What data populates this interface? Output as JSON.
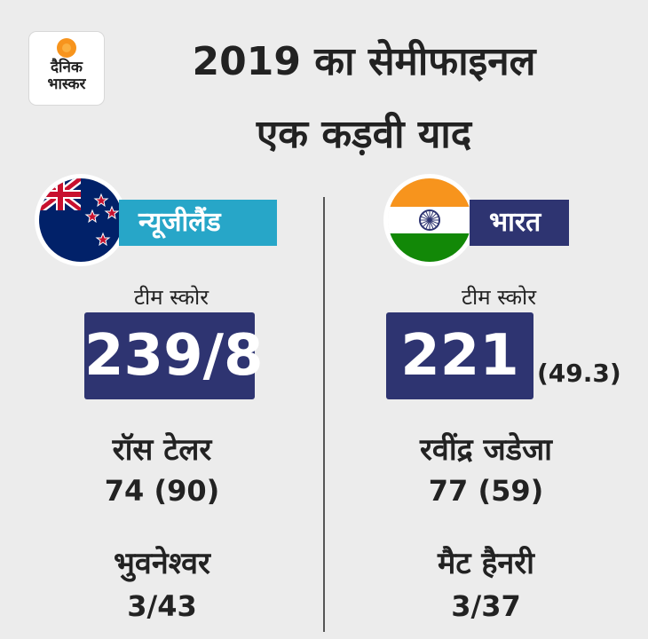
{
  "logo": {
    "line1": "दैनिक",
    "line2": "भास्कर"
  },
  "title": {
    "line1": "2019 का सेमीफाइनल",
    "line2": "एक कड़वी याद"
  },
  "teams": [
    {
      "name": "न्यूजीलैंड",
      "score_caption": "टीम स्कोर",
      "score": "239/8",
      "overs": "",
      "top_batsman": "रॉस टेलर",
      "top_batsman_score": "74 (90)",
      "top_bowler": "भुवनेश्वर",
      "top_bowler_figures": "3/43"
    },
    {
      "name": "भारत",
      "score_caption": "टीम स्कोर",
      "score": "221",
      "overs": "(49.3)",
      "top_batsman": "रवींद्र जडेजा",
      "top_batsman_score": "77 (59)",
      "top_bowler": "मैट हैनरी",
      "top_bowler_figures": "3/37"
    }
  ],
  "colors": {
    "background": "#ececec",
    "navy": "#2e3471",
    "nz_label": "#27a6c8",
    "saffron": "#f7941d",
    "india_green": "#128807"
  }
}
